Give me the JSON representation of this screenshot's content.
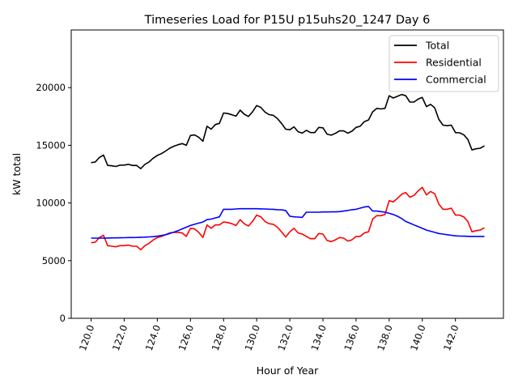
{
  "chart_data": {
    "type": "line",
    "title": "Timeseries Load for P15U p15uhs20_1247  Day 6",
    "xlabel": "Hour of Year",
    "ylabel": "kW total",
    "xlim": [
      118.8,
      144.9
    ],
    "ylim": [
      0,
      25000
    ],
    "x_ticks": [
      120,
      122,
      124,
      126,
      128,
      130,
      132,
      134,
      136,
      138,
      140,
      142
    ],
    "x_tick_labels": [
      "120.0",
      "122.0",
      "124.0",
      "126.0",
      "128.0",
      "130.0",
      "132.0",
      "134.0",
      "136.0",
      "138.0",
      "140.0",
      "142.0"
    ],
    "y_ticks": [
      0,
      5000,
      10000,
      15000,
      20000
    ],
    "y_tick_labels": [
      "0",
      "5000",
      "10000",
      "15000",
      "20000"
    ],
    "grid": false,
    "legend_position": "top-right",
    "x_start": 120,
    "x_step": 0.25,
    "series": [
      {
        "name": "Total",
        "color": "#000000",
        "values": [
          13500,
          13550,
          13950,
          14150,
          13260,
          13220,
          13170,
          13280,
          13290,
          13350,
          13250,
          13260,
          12980,
          13340,
          13560,
          13880,
          14120,
          14280,
          14500,
          14750,
          14920,
          15050,
          15150,
          15000,
          15850,
          15900,
          15700,
          15350,
          16650,
          16400,
          16800,
          16900,
          17800,
          17750,
          17650,
          17530,
          18050,
          17700,
          17500,
          17900,
          18450,
          18290,
          17880,
          17660,
          17600,
          17320,
          16900,
          16400,
          16350,
          16600,
          16180,
          16050,
          16300,
          16100,
          16100,
          16550,
          16520,
          15970,
          15880,
          16030,
          16250,
          16250,
          16050,
          16220,
          16550,
          16650,
          17050,
          17200,
          17900,
          18200,
          18150,
          18200,
          19300,
          19100,
          19250,
          19400,
          19300,
          18750,
          18750,
          19000,
          19150,
          18350,
          18550,
          18250,
          17250,
          16750,
          16700,
          16750,
          16100,
          16080,
          15920,
          15510,
          14600,
          14700,
          14750,
          14950
        ]
      },
      {
        "name": "Residential",
        "color": "#ff0000",
        "values": [
          6550,
          6600,
          7000,
          7200,
          6300,
          6250,
          6200,
          6300,
          6300,
          6350,
          6250,
          6250,
          5950,
          6300,
          6500,
          6800,
          7000,
          7100,
          7250,
          7400,
          7450,
          7450,
          7400,
          7100,
          7800,
          7750,
          7450,
          7000,
          8100,
          7800,
          8100,
          8100,
          8350,
          8300,
          8200,
          8050,
          8550,
          8200,
          8000,
          8400,
          8950,
          8800,
          8400,
          8200,
          8150,
          7900,
          7500,
          7050,
          7500,
          7800,
          7400,
          7300,
          7100,
          6900,
          6900,
          7350,
          7300,
          6750,
          6650,
          6800,
          7000,
          6950,
          6700,
          6800,
          7100,
          7100,
          7400,
          7500,
          8600,
          8900,
          8900,
          9000,
          10200,
          10100,
          10400,
          10750,
          10900,
          10500,
          10650,
          11050,
          11350,
          10700,
          11000,
          10800,
          9900,
          9450,
          9450,
          9550,
          8950,
          8950,
          8800,
          8400,
          7500,
          7600,
          7650,
          7850
        ]
      },
      {
        "name": "Commercial",
        "color": "#0000ff",
        "values": [
          6950,
          6950,
          6950,
          6950,
          6960,
          6970,
          6970,
          6980,
          6990,
          7000,
          7000,
          7010,
          7030,
          7040,
          7060,
          7080,
          7120,
          7180,
          7250,
          7350,
          7470,
          7600,
          7750,
          7900,
          8050,
          8150,
          8250,
          8350,
          8550,
          8600,
          8700,
          8800,
          9450,
          9450,
          9450,
          9480,
          9500,
          9500,
          9500,
          9500,
          9500,
          9490,
          9480,
          9460,
          9450,
          9420,
          9400,
          9350,
          8850,
          8800,
          8780,
          8750,
          9200,
          9200,
          9200,
          9200,
          9220,
          9220,
          9230,
          9230,
          9250,
          9300,
          9350,
          9420,
          9450,
          9550,
          9650,
          9700,
          9300,
          9300,
          9250,
          9200,
          9100,
          9000,
          8850,
          8650,
          8400,
          8250,
          8100,
          7950,
          7800,
          7650,
          7550,
          7450,
          7350,
          7300,
          7250,
          7200,
          7150,
          7130,
          7120,
          7110,
          7100,
          7100,
          7100,
          7100
        ]
      }
    ]
  }
}
